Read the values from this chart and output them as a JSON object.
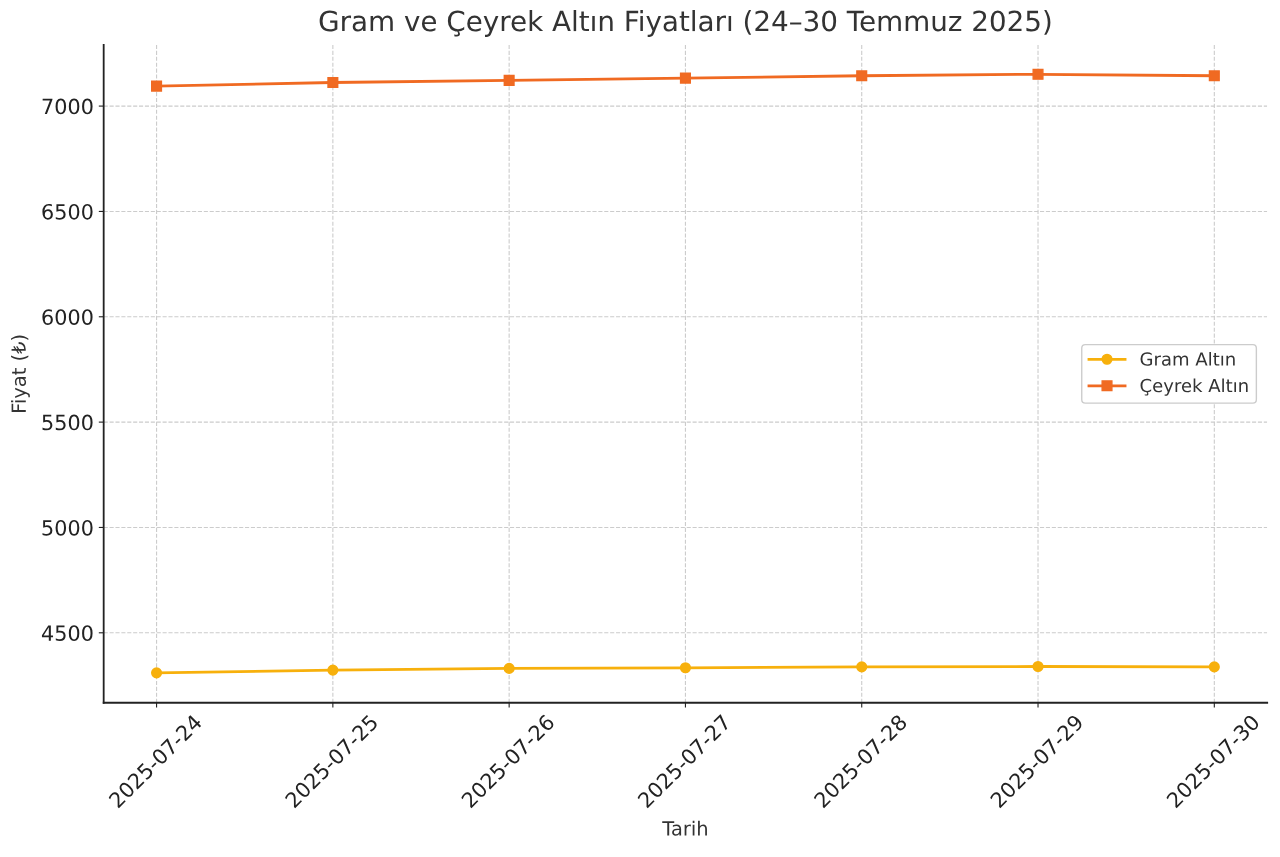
{
  "chart_data": {
    "type": "line",
    "title": "Gram ve Çeyrek Altın Fiyatları (24–30 Temmuz 2025)",
    "xlabel": "Tarih",
    "ylabel": "Fiyat (₺)",
    "x": [
      "2025-07-24",
      "2025-07-25",
      "2025-07-26",
      "2025-07-27",
      "2025-07-28",
      "2025-07-29",
      "2025-07-30"
    ],
    "series": [
      {
        "name": "Gram Altın",
        "color": "#f7b00c",
        "marker": "circle",
        "values": [
          4310,
          4323,
          4331,
          4334,
          4338,
          4340,
          4338
        ]
      },
      {
        "name": "Çeyrek Altın",
        "color": "#f06a22",
        "marker": "square",
        "values": [
          7095,
          7112,
          7122,
          7133,
          7144,
          7151,
          7144
        ]
      }
    ],
    "xlim": [
      "2025-07-23T16:48",
      "2025-07-30T07:12"
    ],
    "xticks": [
      "2025-07-24",
      "2025-07-25",
      "2025-07-26",
      "2025-07-27",
      "2025-07-28",
      "2025-07-29",
      "2025-07-30"
    ],
    "ylim": [
      4168,
      7290
    ],
    "yticks": [
      4500,
      5000,
      5500,
      6000,
      6500,
      7000
    ],
    "grid": true,
    "legend": "right",
    "line_style": "solid"
  }
}
